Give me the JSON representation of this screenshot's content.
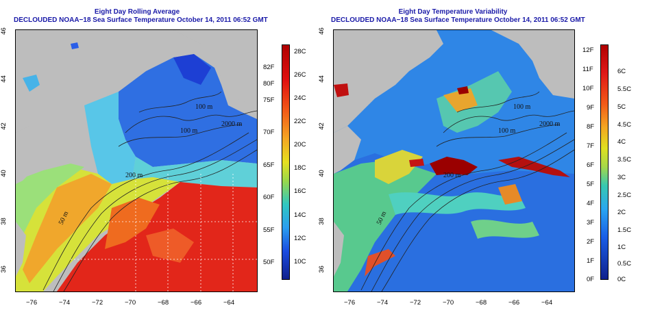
{
  "left": {
    "title_line1": "Eight Day Rolling Average",
    "title_line2": "DECLOUDED NOAA−18 Sea Surface Temperature October 14, 2011 06:52 GMT",
    "x_ticks": [
      "−76",
      "−74",
      "−72",
      "−70",
      "−68",
      "−66",
      "−64"
    ],
    "y_ticks": [
      "46",
      "44",
      "42",
      "40",
      "38",
      "36"
    ],
    "contour_labels": [
      "100 m",
      "100 m",
      "2000 m",
      "200 m",
      "50 m"
    ],
    "colorbar_left": [
      "82F",
      "80F",
      "75F",
      "70F",
      "65F",
      "60F",
      "55F",
      "50F"
    ],
    "colorbar_right": [
      "28C",
      "26C",
      "24C",
      "22C",
      "20C",
      "18C",
      "16C",
      "14C",
      "12C",
      "10C"
    ]
  },
  "right": {
    "title_line1": "Eight Day Temperature Variability",
    "title_line2": "DECLOUDED NOAA−18 Sea Surface Temperature October 14, 2011 06:52 GMT",
    "x_ticks": [
      "−76",
      "−74",
      "−72",
      "−70",
      "−68",
      "−66",
      "−64"
    ],
    "y_ticks": [
      "46",
      "44",
      "42",
      "40",
      "38",
      "36"
    ],
    "contour_labels": [
      "100 m",
      "100 m",
      "2000 m",
      "200 m",
      "50 m"
    ],
    "colorbar_left": [
      "12F",
      "11F",
      "10F",
      "9F",
      "8F",
      "7F",
      "6F",
      "5F",
      "4F",
      "3F",
      "2F",
      "1F",
      "0F"
    ],
    "colorbar_right": [
      "6C",
      "5.5C",
      "5C",
      "4.5C",
      "4C",
      "3.5C",
      "3C",
      "2.5C",
      "2C",
      "1.5C",
      "1C",
      "0.5C",
      "0C"
    ]
  },
  "colors": {
    "land": "#bdbdbd",
    "title": "#1a1aa8"
  }
}
